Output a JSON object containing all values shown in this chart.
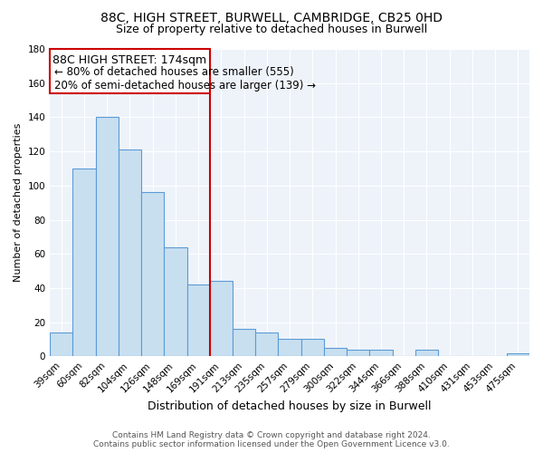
{
  "title": "88C, HIGH STREET, BURWELL, CAMBRIDGE, CB25 0HD",
  "subtitle": "Size of property relative to detached houses in Burwell",
  "xlabel": "Distribution of detached houses by size in Burwell",
  "ylabel": "Number of detached properties",
  "bar_labels": [
    "39sqm",
    "60sqm",
    "82sqm",
    "104sqm",
    "126sqm",
    "148sqm",
    "169sqm",
    "191sqm",
    "213sqm",
    "235sqm",
    "257sqm",
    "279sqm",
    "300sqm",
    "322sqm",
    "344sqm",
    "366sqm",
    "388sqm",
    "410sqm",
    "431sqm",
    "453sqm",
    "475sqm"
  ],
  "bar_values": [
    14,
    110,
    140,
    121,
    96,
    64,
    42,
    44,
    16,
    14,
    10,
    10,
    5,
    4,
    4,
    0,
    4,
    0,
    0,
    0,
    2
  ],
  "bar_color": "#c8dff0",
  "bar_edge_color": "#5b9bd5",
  "vline_color": "#cc0000",
  "annotation_title": "88C HIGH STREET: 174sqm",
  "annotation_line1": "← 80% of detached houses are smaller (555)",
  "annotation_line2": "20% of semi-detached houses are larger (139) →",
  "annotation_box_color": "#cc0000",
  "annotation_box_fill": "#ffffff",
  "ylim": [
    0,
    180
  ],
  "yticks": [
    0,
    20,
    40,
    60,
    80,
    100,
    120,
    140,
    160,
    180
  ],
  "footer_line1": "Contains HM Land Registry data © Crown copyright and database right 2024.",
  "footer_line2": "Contains public sector information licensed under the Open Government Licence v3.0.",
  "title_fontsize": 10,
  "subtitle_fontsize": 9,
  "xlabel_fontsize": 9,
  "ylabel_fontsize": 8,
  "tick_fontsize": 7.5,
  "annotation_title_fontsize": 9,
  "annotation_line_fontsize": 8.5,
  "footer_fontsize": 6.5
}
